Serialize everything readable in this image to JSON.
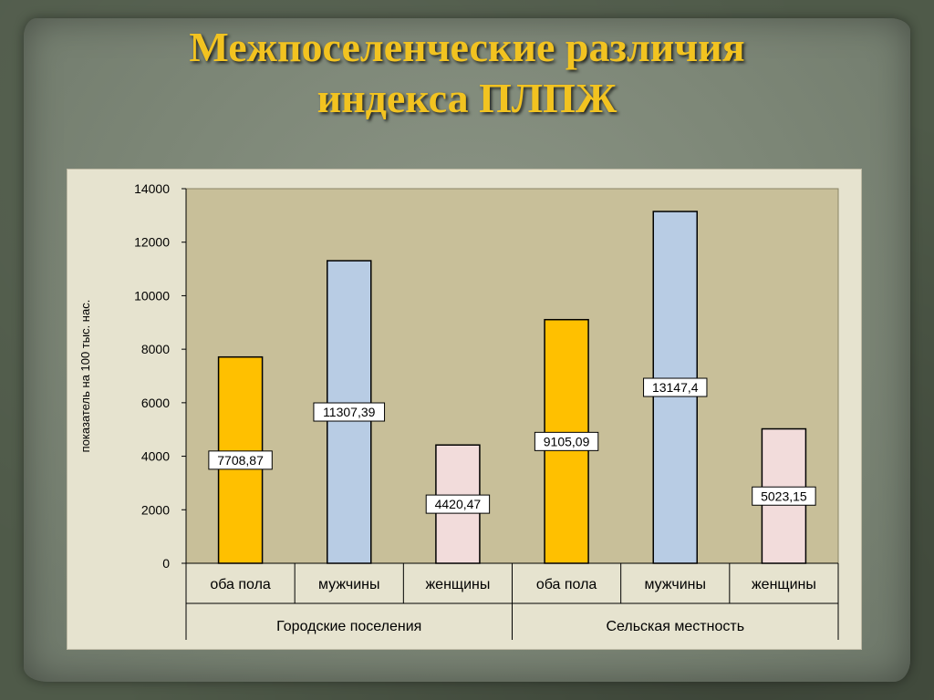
{
  "slide": {
    "title_line1": "Межпоселенческие различия",
    "title_line2": "индекса ПЛПЖ"
  },
  "colors": {
    "plot_bg": "#c8bf99",
    "chart_bg": "#e6e3cf",
    "both": "#ffc000",
    "men": "#b8cce4",
    "women": "#f2dcdb",
    "title": "#f2c320"
  },
  "chart_data": {
    "type": "bar",
    "ylabel": "показатель на 100 тыс. нас.",
    "ylim": [
      0,
      14000
    ],
    "yticks": [
      0,
      2000,
      4000,
      6000,
      8000,
      10000,
      12000,
      14000
    ],
    "grid": false,
    "groups": [
      {
        "name": "Городские поселения",
        "bars": [
          {
            "category": "оба пола",
            "value": 7708.87,
            "label": "7708,87",
            "color_key": "both"
          },
          {
            "category": "мужчины",
            "value": 11307.39,
            "label": "11307,39",
            "color_key": "men"
          },
          {
            "category": "женщины",
            "value": 4420.47,
            "label": "4420,47",
            "color_key": "women"
          }
        ]
      },
      {
        "name": "Сельская  местность",
        "bars": [
          {
            "category": "оба пола",
            "value": 9105.09,
            "label": "9105,09",
            "color_key": "both"
          },
          {
            "category": "мужчины",
            "value": 13147.4,
            "label": "13147,4",
            "color_key": "men"
          },
          {
            "category": "женщины",
            "value": 5023.15,
            "label": "5023,15",
            "color_key": "women"
          }
        ]
      }
    ]
  }
}
